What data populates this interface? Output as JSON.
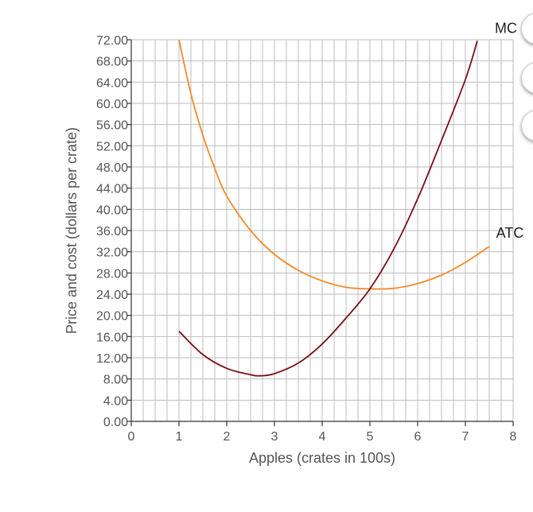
{
  "chart_data": {
    "type": "line",
    "title": "",
    "xlabel": "Apples (crates in 100s)",
    "ylabel": "Price and cost (dollars per crate)",
    "xlim": [
      0,
      8
    ],
    "ylim": [
      0,
      72
    ],
    "x_ticks": [
      "0",
      "1",
      "2",
      "3",
      "4",
      "5",
      "6",
      "7",
      "8"
    ],
    "y_ticks": [
      "0.00",
      "4.00",
      "8.00",
      "12.00",
      "16.00",
      "20.00",
      "24.00",
      "28.00",
      "32.00",
      "36.00",
      "40.00",
      "44.00",
      "48.00",
      "52.00",
      "56.00",
      "60.00",
      "64.00",
      "68.00",
      "72.00"
    ],
    "grid": true,
    "series": [
      {
        "name": "ATC",
        "color": "#f5892a",
        "x": [
          1.0,
          1.25,
          1.5,
          1.75,
          2.0,
          2.5,
          3.0,
          3.5,
          4.0,
          4.5,
          5.0,
          5.5,
          6.0,
          6.5,
          7.0,
          7.5
        ],
        "y": [
          72.0,
          61.8,
          54.0,
          47.7,
          42.5,
          36.0,
          31.5,
          28.5,
          26.5,
          25.3,
          25.0,
          25.1,
          26.0,
          27.6,
          30.0,
          33.0
        ]
      },
      {
        "name": "MC",
        "color": "#7a1018",
        "x": [
          1.0,
          1.5,
          2.0,
          2.5,
          2.7,
          3.0,
          3.5,
          4.0,
          4.5,
          5.0,
          5.5,
          6.0,
          6.5,
          7.0,
          7.25
        ],
        "y": [
          17.0,
          12.6,
          10.0,
          8.8,
          8.6,
          9.0,
          11.0,
          14.6,
          19.5,
          25.0,
          32.5,
          42.0,
          53.0,
          64.5,
          71.8
        ]
      }
    ]
  }
}
